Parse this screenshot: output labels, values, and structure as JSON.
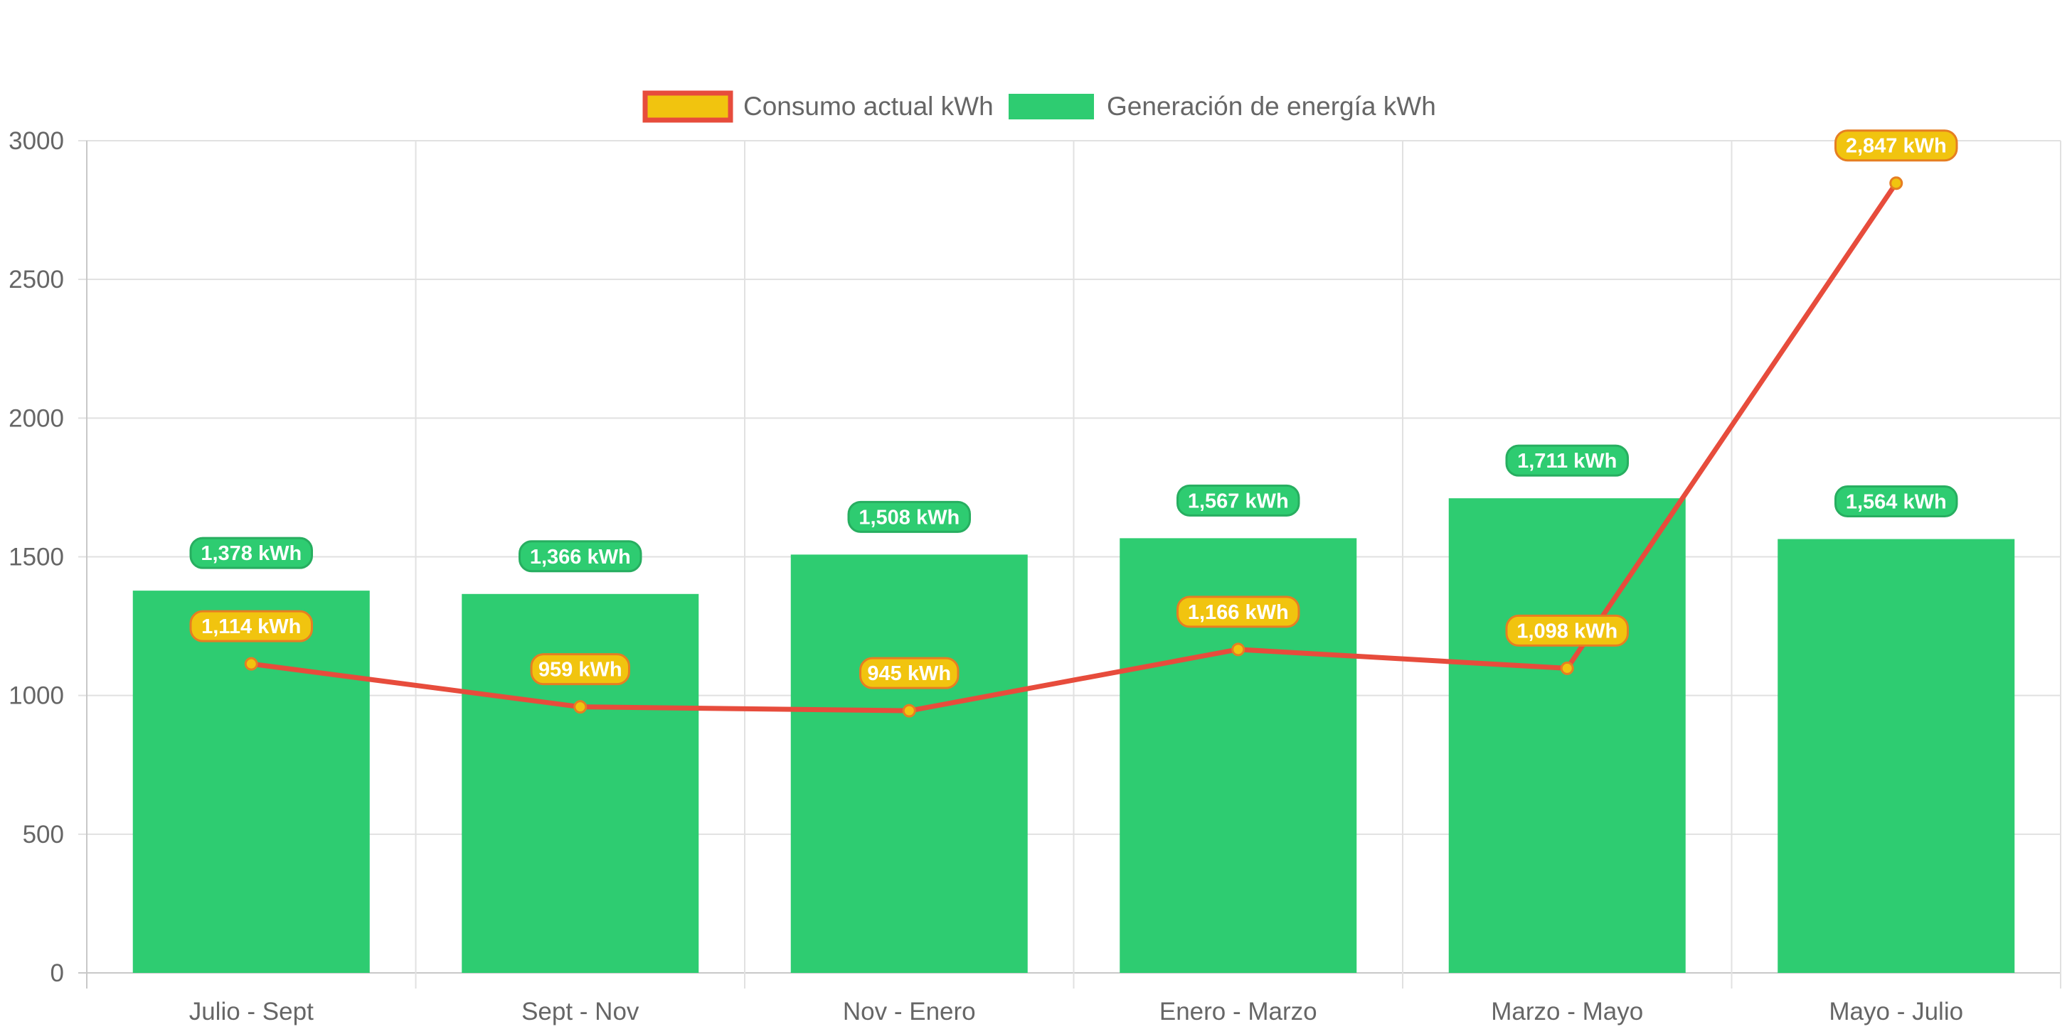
{
  "chart_data": {
    "type": "bar",
    "categories": [
      "Julio - Sept",
      "Sept - Nov",
      "Nov - Enero",
      "Enero - Marzo",
      "Marzo - Mayo",
      "Mayo - Julio"
    ],
    "series": [
      {
        "name": "Consumo actual kWh",
        "type": "line",
        "values": [
          1114,
          959,
          945,
          1166,
          1098,
          2847
        ],
        "labels": [
          "1,114 kWh",
          "959 kWh",
          "945 kWh",
          "1,166 kWh",
          "1,098 kWh",
          "2,847 kWh"
        ],
        "color": "#e74c3c",
        "fill": "#f1c40f",
        "label_border": "#e67e22"
      },
      {
        "name": "Generación de energía kWh",
        "type": "bar",
        "values": [
          1378,
          1366,
          1508,
          1567,
          1711,
          1564
        ],
        "labels": [
          "1,378 kWh",
          "1,366 kWh",
          "1,508 kWh",
          "1,567 kWh",
          "1,711 kWh",
          "1,564 kWh"
        ],
        "color": "#2ecc71",
        "label_border": "#27ae60"
      }
    ],
    "y_ticks": [
      "0",
      "500",
      "1000",
      "1500",
      "2000",
      "2500",
      "3000"
    ],
    "ylim": [
      0,
      3000
    ],
    "title": "",
    "xlabel": "",
    "ylabel": "",
    "grid": true,
    "legend_position": "top"
  }
}
